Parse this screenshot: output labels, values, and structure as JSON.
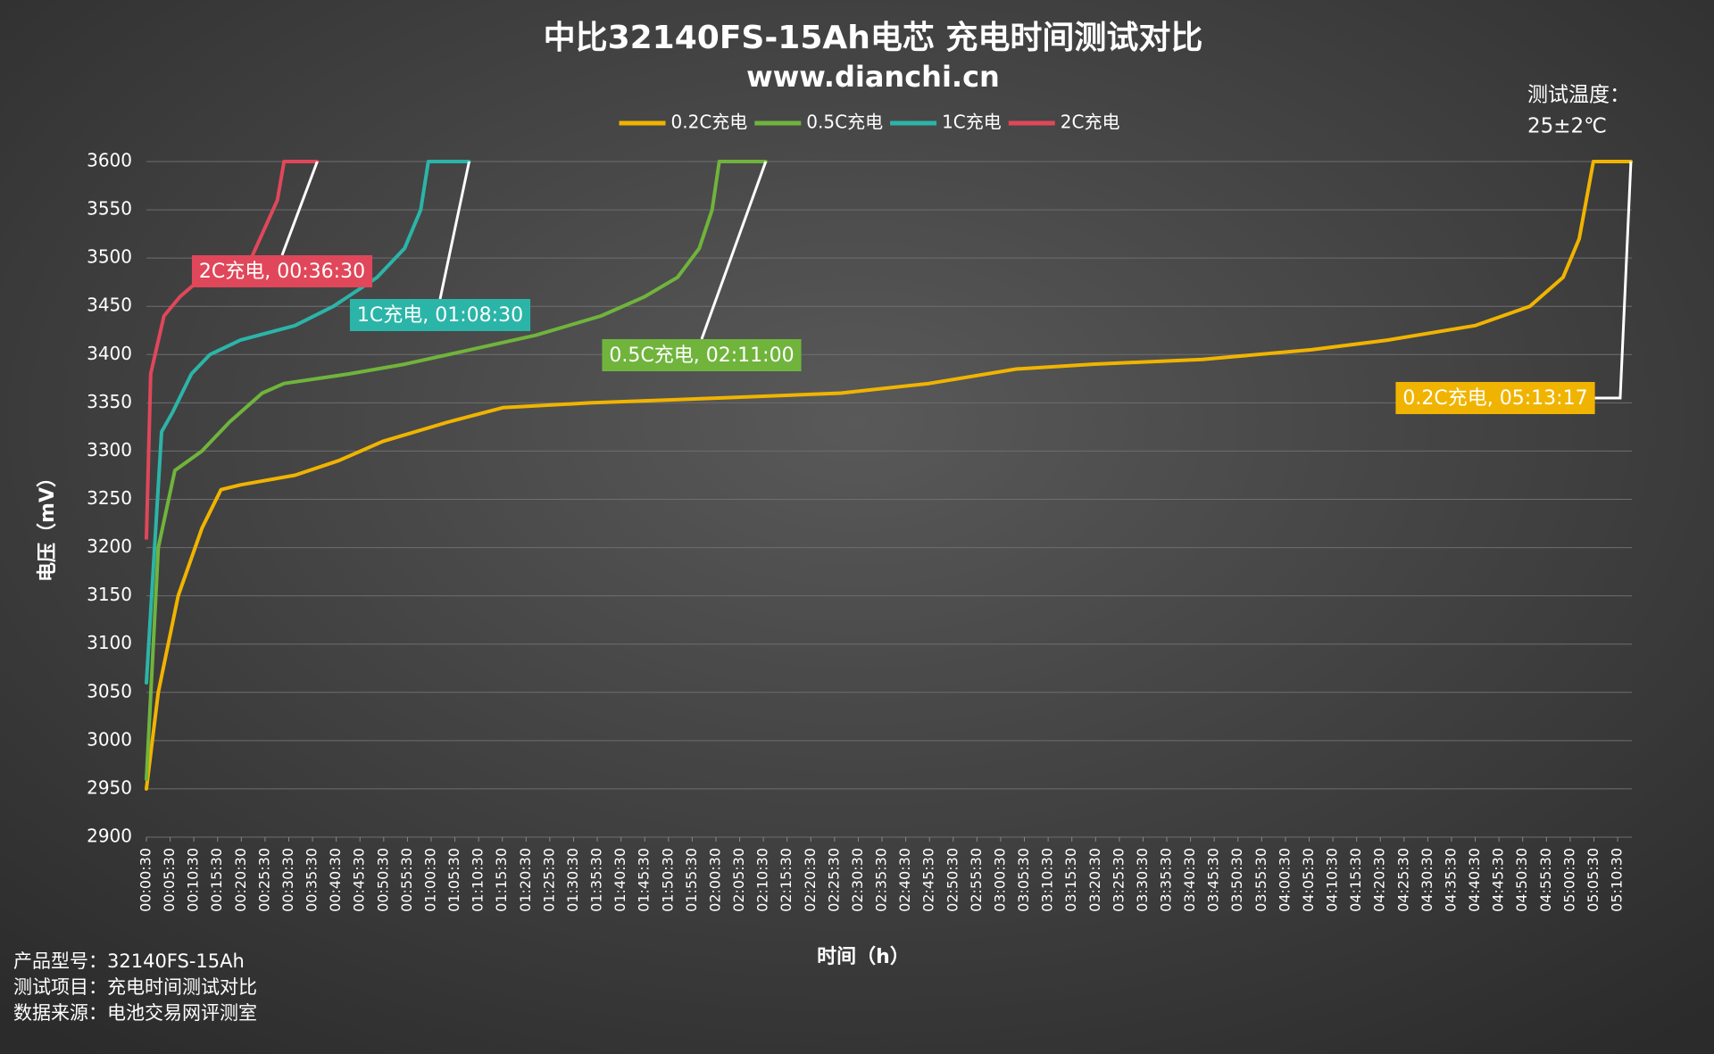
{
  "chart_data": {
    "type": "line",
    "title": "中比32140FS-15Ah电芯 充电时间测试对比",
    "subtitle": "www.dianchi.cn",
    "xlabel": "时间（h）",
    "ylabel": "电压（mV）",
    "legend": "top",
    "grid": true,
    "ylim": [
      2900,
      3600
    ],
    "yticks": [
      2900,
      2950,
      3000,
      3050,
      3100,
      3150,
      3200,
      3250,
      3300,
      3350,
      3400,
      3450,
      3500,
      3550,
      3600
    ],
    "xlim": [
      0.5,
      313.5
    ],
    "xticks": [
      {
        "value": 0.5,
        "label": "00:00:30"
      },
      {
        "value": 5.5,
        "label": "00:05:30"
      },
      {
        "value": 10.5,
        "label": "00:10:30"
      },
      {
        "value": 15.5,
        "label": "00:15:30"
      },
      {
        "value": 20.5,
        "label": "00:20:30"
      },
      {
        "value": 25.5,
        "label": "00:25:30"
      },
      {
        "value": 30.5,
        "label": "00:30:30"
      },
      {
        "value": 35.5,
        "label": "00:35:30"
      },
      {
        "value": 40.5,
        "label": "00:40:30"
      },
      {
        "value": 45.5,
        "label": "00:45:30"
      },
      {
        "value": 50.5,
        "label": "00:50:30"
      },
      {
        "value": 55.5,
        "label": "00:55:30"
      },
      {
        "value": 60.5,
        "label": "01:00:30"
      },
      {
        "value": 65.5,
        "label": "01:05:30"
      },
      {
        "value": 70.5,
        "label": "01:10:30"
      },
      {
        "value": 75.5,
        "label": "01:15:30"
      },
      {
        "value": 80.5,
        "label": "01:20:30"
      },
      {
        "value": 85.5,
        "label": "01:25:30"
      },
      {
        "value": 90.5,
        "label": "01:30:30"
      },
      {
        "value": 95.5,
        "label": "01:35:30"
      },
      {
        "value": 100.5,
        "label": "01:40:30"
      },
      {
        "value": 105.5,
        "label": "01:45:30"
      },
      {
        "value": 110.5,
        "label": "01:50:30"
      },
      {
        "value": 115.5,
        "label": "01:55:30"
      },
      {
        "value": 120.5,
        "label": "02:00:30"
      },
      {
        "value": 125.5,
        "label": "02:05:30"
      },
      {
        "value": 130.5,
        "label": "02:10:30"
      },
      {
        "value": 135.5,
        "label": "02:15:30"
      },
      {
        "value": 140.5,
        "label": "02:20:30"
      },
      {
        "value": 145.5,
        "label": "02:25:30"
      },
      {
        "value": 150.5,
        "label": "02:30:30"
      },
      {
        "value": 155.5,
        "label": "02:35:30"
      },
      {
        "value": 160.5,
        "label": "02:40:30"
      },
      {
        "value": 165.5,
        "label": "02:45:30"
      },
      {
        "value": 170.5,
        "label": "02:50:30"
      },
      {
        "value": 175.5,
        "label": "02:55:30"
      },
      {
        "value": 180.5,
        "label": "03:00:30"
      },
      {
        "value": 185.5,
        "label": "03:05:30"
      },
      {
        "value": 190.5,
        "label": "03:10:30"
      },
      {
        "value": 195.5,
        "label": "03:15:30"
      },
      {
        "value": 200.5,
        "label": "03:20:30"
      },
      {
        "value": 205.5,
        "label": "03:25:30"
      },
      {
        "value": 210.5,
        "label": "03:30:30"
      },
      {
        "value": 215.5,
        "label": "03:35:30"
      },
      {
        "value": 220.5,
        "label": "03:40:30"
      },
      {
        "value": 225.5,
        "label": "03:45:30"
      },
      {
        "value": 230.5,
        "label": "03:50:30"
      },
      {
        "value": 235.5,
        "label": "03:55:30"
      },
      {
        "value": 240.5,
        "label": "04:00:30"
      },
      {
        "value": 245.5,
        "label": "04:05:30"
      },
      {
        "value": 250.5,
        "label": "04:10:30"
      },
      {
        "value": 255.5,
        "label": "04:15:30"
      },
      {
        "value": 260.5,
        "label": "04:20:30"
      },
      {
        "value": 265.5,
        "label": "04:25:30"
      },
      {
        "value": 270.5,
        "label": "04:30:30"
      },
      {
        "value": 275.5,
        "label": "04:35:30"
      },
      {
        "value": 280.5,
        "label": "04:40:30"
      },
      {
        "value": 285.5,
        "label": "04:45:30"
      },
      {
        "value": 290.5,
        "label": "04:50:30"
      },
      {
        "value": 295.5,
        "label": "04:55:30"
      },
      {
        "value": 300.5,
        "label": "05:00:30"
      },
      {
        "value": 305.5,
        "label": "05:05:30"
      },
      {
        "value": 310.5,
        "label": "05:10:30"
      }
    ],
    "series": [
      {
        "name": "0.2C充电",
        "color": "#f0b400",
        "x": [
          0.5,
          3,
          7.2,
          12.2,
          16.2,
          20.3,
          31.8,
          41,
          50.3,
          64,
          75.6,
          94,
          121.6,
          146.8,
          165.4,
          183.8,
          199.9,
          223,
          246,
          262,
          280.5,
          292,
          299,
          302.4,
          305.4,
          313.3
        ],
        "values": [
          2950,
          3050,
          3150,
          3220,
          3260,
          3265,
          3275,
          3290,
          3310,
          3330,
          3345,
          3350,
          3355,
          3360,
          3370,
          3385,
          3390,
          3395,
          3405,
          3415,
          3430,
          3450,
          3480,
          3520,
          3600,
          3600
        ]
      },
      {
        "name": "0.5C充电",
        "color": "#70b43c",
        "x": [
          0.5,
          3,
          6.5,
          12.2,
          18,
          24.9,
          29.5,
          43.3,
          54.9,
          68.7,
          82.5,
          96.3,
          105.5,
          112.4,
          117,
          119.7,
          121.2,
          131
        ],
        "values": [
          2960,
          3200,
          3280,
          3300,
          3330,
          3360,
          3370,
          3380,
          3390,
          3405,
          3420,
          3440,
          3460,
          3480,
          3510,
          3550,
          3600,
          3600
        ]
      },
      {
        "name": "1C充电",
        "color": "#2bb5a8",
        "x": [
          0.5,
          3.7,
          6,
          10,
          13.9,
          20.3,
          31.8,
          39.9,
          49.1,
          54.9,
          58.3,
          59.9,
          68.5
        ],
        "values": [
          3060,
          3320,
          3340,
          3380,
          3400,
          3415,
          3430,
          3450,
          3480,
          3510,
          3550,
          3600,
          3600
        ]
      },
      {
        "name": "2C充电",
        "color": "#e0475a",
        "x": [
          0.5,
          1.4,
          4.2,
          7.6,
          12.3,
          18.5,
          22.6,
          27.2,
          28.1,
          29.5,
          36.5
        ],
        "values": [
          3210,
          3380,
          3440,
          3460,
          3480,
          3490,
          3500,
          3550,
          3560,
          3600,
          3600
        ]
      }
    ],
    "annotations": [
      "0.2C充电, 05:13:17",
      "0.5C充电, 02:11:00",
      "1C充电, 01:08:30",
      "2C充电, 00:36:30"
    ],
    "temperature_note": [
      "测试温度：",
      "25±2℃"
    ],
    "footer": [
      "产品型号：32140FS-15Ah",
      "测试项目：充电时间测试对比",
      "数据来源：电池交易网评测室"
    ]
  }
}
